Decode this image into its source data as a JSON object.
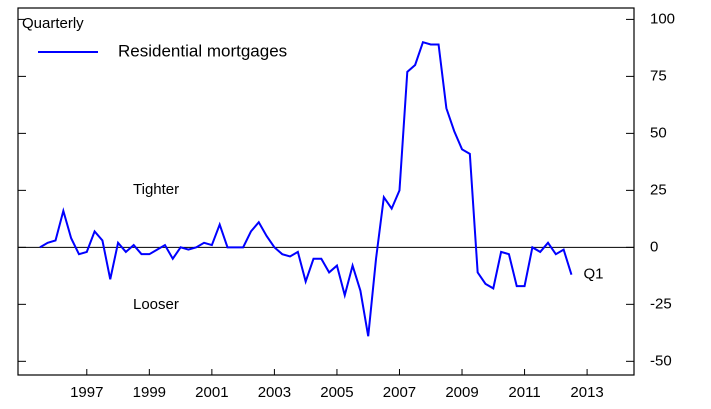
{
  "chart_data": {
    "type": "line",
    "annotations": {
      "frequency": "Quarterly",
      "upper": "Tighter",
      "lower": "Looser",
      "end": "Q1"
    },
    "x": [
      1996,
      1996.25,
      1996.5,
      1996.75,
      1997,
      1997.25,
      1997.5,
      1997.75,
      1998,
      1998.25,
      1998.5,
      1998.75,
      1999,
      1999.25,
      1999.5,
      1999.75,
      2000,
      2000.25,
      2000.5,
      2000.75,
      2001,
      2001.25,
      2001.5,
      2001.75,
      2002,
      2002.25,
      2002.5,
      2002.75,
      2003,
      2003.25,
      2003.5,
      2003.75,
      2004,
      2004.25,
      2004.5,
      2004.75,
      2005,
      2005.25,
      2005.5,
      2005.75,
      2006,
      2006.25,
      2006.5,
      2006.75,
      2007,
      2007.25,
      2007.5,
      2007.75,
      2008,
      2008.25,
      2008.5,
      2008.75,
      2009,
      2009.25,
      2009.5,
      2009.75,
      2010,
      2010.25,
      2010.5,
      2010.75,
      2011,
      2011.25,
      2011.5,
      2011.75,
      2012,
      2012.25,
      2012.5,
      2012.75,
      2013
    ],
    "series": [
      {
        "name": "Residential mortgages",
        "color": "#0000ff",
        "values": [
          0,
          2,
          3,
          16,
          4,
          -3,
          -2,
          7,
          3,
          -14,
          2,
          -2,
          1,
          -3,
          -3,
          -1,
          1,
          -5,
          0,
          -1,
          0,
          2,
          1,
          10,
          0,
          0,
          0,
          7,
          11,
          5,
          0,
          -3,
          -4,
          -2,
          -15,
          -5,
          -5,
          -11,
          -8,
          -21,
          -8,
          -19,
          -39,
          -5,
          22,
          17,
          25,
          77,
          80,
          90,
          89,
          89,
          61,
          51,
          43,
          41,
          -11,
          -16,
          -18,
          -2,
          -3,
          -17,
          -17,
          0,
          -2,
          2,
          -3,
          -1,
          -12
        ]
      }
    ],
    "xlim": [
      1995.3,
      2015
    ],
    "xticks": [
      {
        "value": 1997.5,
        "label": "1997"
      },
      {
        "value": 1999.5,
        "label": "1999"
      },
      {
        "value": 2001.5,
        "label": "2001"
      },
      {
        "value": 2003.5,
        "label": "2003"
      },
      {
        "value": 2005.5,
        "label": "2005"
      },
      {
        "value": 2007.5,
        "label": "2007"
      },
      {
        "value": 2009.5,
        "label": "2009"
      },
      {
        "value": 2011.5,
        "label": "2011"
      },
      {
        "value": 2013.5,
        "label": "2013"
      }
    ],
    "ylim": [
      -56,
      105
    ],
    "yticks": [
      100,
      75,
      50,
      25,
      0,
      -25,
      -50
    ],
    "zero_line": true
  }
}
